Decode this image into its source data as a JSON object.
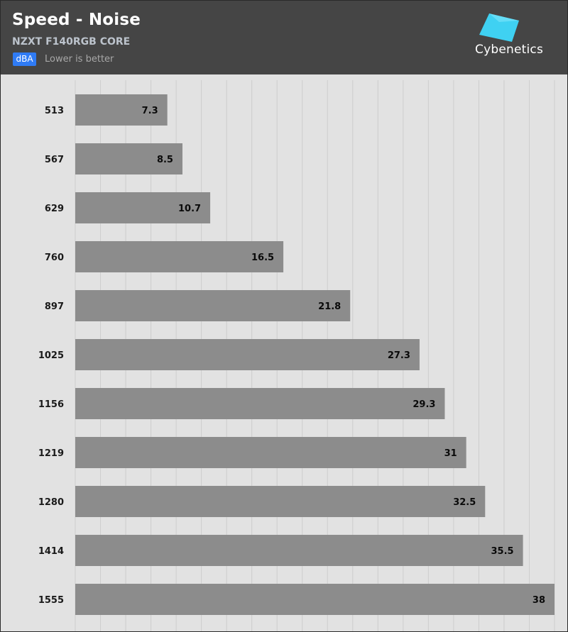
{
  "header": {
    "title": "Speed - Noise",
    "subtitle": "NZXT F140RGB CORE",
    "unit_badge": "dBA",
    "note": "Lower is better",
    "logo_text": "Cybenetics",
    "logo_icon": "cybenetics-logo-icon"
  },
  "colors": {
    "header_bg": "#454545",
    "plot_bg": "#e2e2e2",
    "bar": "#8c8c8c",
    "badge": "#2f7bf5",
    "logo_cyan": "#3fd1f2"
  },
  "chart_data": {
    "type": "bar",
    "orientation": "horizontal",
    "title": "Speed - Noise",
    "subtitle": "NZXT F140RGB CORE",
    "unit": "dBA",
    "note": "Lower is better",
    "categories": [
      "513",
      "567",
      "629",
      "760",
      "897",
      "1025",
      "1156",
      "1219",
      "1280",
      "1414",
      "1555"
    ],
    "values": [
      7.3,
      8.5,
      10.7,
      16.5,
      21.8,
      27.3,
      29.3,
      31,
      32.5,
      35.5,
      38
    ],
    "value_labels": [
      "7.3",
      "8.5",
      "10.7",
      "16.5",
      "21.8",
      "27.3",
      "29.3",
      "31",
      "32.5",
      "35.5",
      "38"
    ],
    "xlim": [
      0,
      38
    ],
    "grid": true,
    "legend": "none"
  }
}
